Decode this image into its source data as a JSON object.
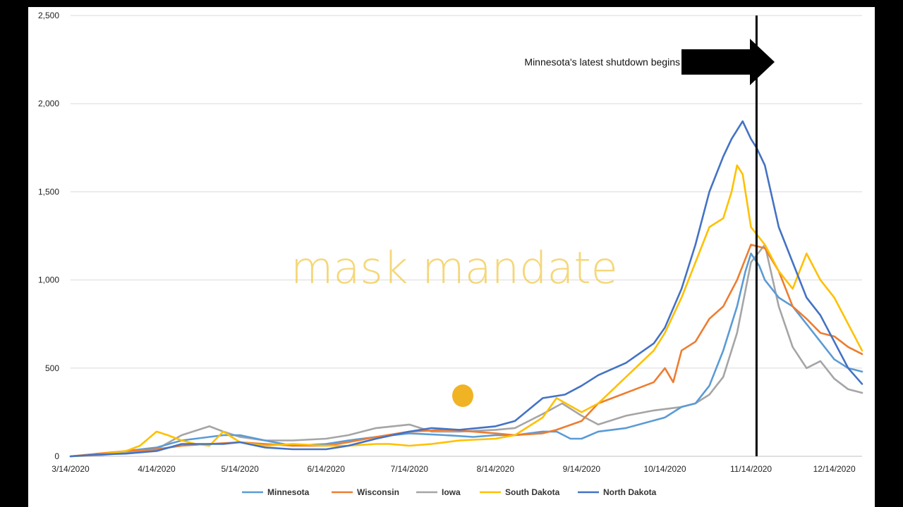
{
  "chart_data": {
    "type": "line",
    "title": "",
    "xlabel": "",
    "ylabel": "",
    "ylim": [
      0,
      2500
    ],
    "grid": true,
    "legend_position": "bottom",
    "yticks": [
      0,
      500,
      1000,
      1500,
      2000,
      2500
    ],
    "ytick_labels": [
      "0",
      "500",
      "1,000",
      "1,500",
      "2,000",
      "2,500"
    ],
    "xtick_labels": [
      "3/14/2020",
      "4/14/2020",
      "5/14/2020",
      "6/14/2020",
      "7/14/2020",
      "8/14/2020",
      "9/14/2020",
      "10/14/2020",
      "11/14/2020",
      "12/14/2020"
    ],
    "x_unit": "days since 3/14/2020",
    "xticks": [
      0,
      31,
      61,
      92,
      122,
      153,
      184,
      214,
      245,
      275
    ],
    "xlim": [
      0,
      285
    ],
    "series": [
      {
        "name": "Minnesota",
        "color": "#5b9bd5",
        "x": [
          0,
          10,
          20,
          31,
          40,
          50,
          55,
          61,
          70,
          80,
          92,
          100,
          110,
          122,
          135,
          145,
          153,
          160,
          170,
          175,
          180,
          184,
          190,
          200,
          214,
          220,
          225,
          230,
          235,
          240,
          243,
          245,
          248,
          250,
          255,
          260,
          265,
          270,
          275,
          280,
          285
        ],
        "y": [
          0,
          10,
          30,
          50,
          90,
          110,
          120,
          120,
          90,
          60,
          70,
          90,
          110,
          130,
          120,
          110,
          120,
          120,
          140,
          140,
          100,
          100,
          140,
          160,
          220,
          280,
          300,
          400,
          600,
          850,
          1050,
          1150,
          1080,
          1000,
          900,
          850,
          750,
          650,
          550,
          500,
          480
        ]
      },
      {
        "name": "Wisconsin",
        "color": "#ed7d31",
        "x": [
          0,
          10,
          20,
          31,
          40,
          50,
          61,
          70,
          80,
          92,
          100,
          110,
          122,
          135,
          145,
          153,
          160,
          170,
          175,
          184,
          190,
          200,
          210,
          214,
          217,
          220,
          225,
          230,
          235,
          240,
          245,
          250,
          255,
          260,
          265,
          270,
          275,
          280,
          285
        ],
        "y": [
          0,
          15,
          30,
          40,
          60,
          70,
          80,
          70,
          60,
          60,
          80,
          110,
          140,
          150,
          140,
          130,
          120,
          130,
          150,
          200,
          300,
          360,
          420,
          500,
          420,
          600,
          650,
          780,
          850,
          1000,
          1200,
          1180,
          1050,
          850,
          780,
          700,
          680,
          620,
          580
        ]
      },
      {
        "name": "Iowa",
        "color": "#a5a5a5",
        "x": [
          0,
          10,
          20,
          31,
          40,
          50,
          55,
          61,
          70,
          80,
          92,
          100,
          110,
          122,
          130,
          140,
          153,
          160,
          170,
          177,
          184,
          190,
          200,
          210,
          220,
          225,
          230,
          235,
          240,
          245,
          250,
          255,
          260,
          265,
          270,
          275,
          280,
          285
        ],
        "y": [
          0,
          5,
          20,
          40,
          120,
          170,
          140,
          110,
          90,
          90,
          100,
          120,
          160,
          180,
          140,
          140,
          150,
          160,
          240,
          300,
          230,
          180,
          230,
          260,
          280,
          300,
          350,
          450,
          700,
          1100,
          1200,
          850,
          620,
          500,
          540,
          440,
          380,
          360
        ]
      },
      {
        "name": "South Dakota",
        "color": "#ffc000",
        "x": [
          0,
          10,
          20,
          25,
          31,
          35,
          40,
          45,
          50,
          55,
          61,
          70,
          80,
          92,
          100,
          110,
          115,
          122,
          130,
          140,
          153,
          160,
          170,
          175,
          184,
          190,
          200,
          210,
          214,
          220,
          225,
          230,
          235,
          238,
          240,
          242,
          245,
          250,
          255,
          260,
          265,
          270,
          275,
          280,
          285
        ],
        "y": [
          0,
          10,
          30,
          60,
          140,
          120,
          90,
          70,
          60,
          140,
          80,
          60,
          70,
          60,
          60,
          70,
          70,
          60,
          70,
          90,
          100,
          120,
          220,
          330,
          250,
          300,
          450,
          600,
          700,
          900,
          1100,
          1300,
          1350,
          1500,
          1650,
          1600,
          1300,
          1200,
          1050,
          950,
          1150,
          1000,
          900,
          750,
          600
        ]
      },
      {
        "name": "North Dakota",
        "color": "#4472c4",
        "x": [
          0,
          10,
          20,
          31,
          40,
          50,
          55,
          61,
          70,
          80,
          92,
          100,
          110,
          122,
          130,
          140,
          153,
          160,
          170,
          178,
          184,
          190,
          200,
          210,
          214,
          220,
          225,
          230,
          235,
          238,
          240,
          242,
          245,
          247,
          250,
          255,
          260,
          265,
          270,
          275,
          280,
          285
        ],
        "y": [
          0,
          10,
          15,
          30,
          70,
          70,
          70,
          80,
          50,
          40,
          40,
          60,
          100,
          140,
          160,
          150,
          170,
          200,
          330,
          350,
          400,
          460,
          530,
          640,
          730,
          950,
          1200,
          1500,
          1700,
          1800,
          1850,
          1900,
          1800,
          1750,
          1650,
          1300,
          1100,
          900,
          800,
          650,
          500,
          410
        ]
      }
    ],
    "annotations": {
      "shutdown_label": "Minnesota's latest shutdown begins",
      "shutdown_x": 247,
      "overlay_text": "mask mandate"
    }
  }
}
